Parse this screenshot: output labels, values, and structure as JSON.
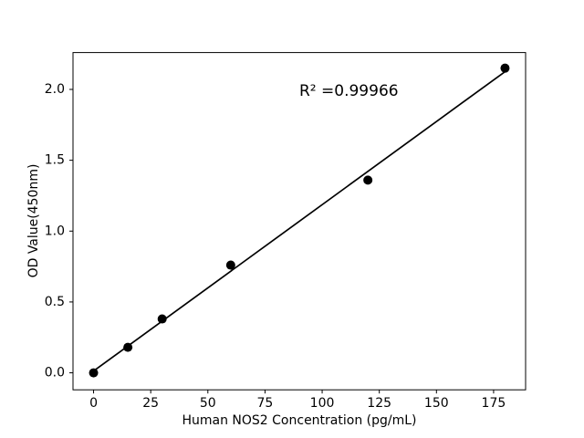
{
  "figure": {
    "background": "#ffffff",
    "frame_color": "#000000"
  },
  "chart_data": {
    "type": "scatter",
    "title": "",
    "xlabel": "Human NOS2 Concentration (pg/mL)",
    "ylabel": "OD Value(450nm)",
    "x": [
      0,
      15,
      30,
      60,
      120,
      180
    ],
    "y": [
      0.0,
      0.18,
      0.38,
      0.76,
      1.36,
      2.15
    ],
    "series_name": "standard-curve",
    "trendline": {
      "type": "linear",
      "x_start": 0,
      "x_end": 180,
      "r_squared_label": "R² =0.99966"
    },
    "annotation": {
      "text": "R² =0.99966",
      "x": 90,
      "y": 1.98
    },
    "xlim": [
      -9,
      189
    ],
    "ylim": [
      -0.12,
      2.26
    ],
    "x_ticks": [
      "0",
      "25",
      "50",
      "75",
      "100",
      "125",
      "150",
      "175"
    ],
    "x_tick_values": [
      0,
      25,
      50,
      75,
      100,
      125,
      150,
      175
    ],
    "y_ticks": [
      "0.0",
      "0.5",
      "1.0",
      "1.5",
      "2.0"
    ],
    "y_tick_values": [
      0.0,
      0.5,
      1.0,
      1.5,
      2.0
    ],
    "grid": false,
    "legend": null,
    "marker_color": "#000000",
    "line_color": "#000000"
  }
}
